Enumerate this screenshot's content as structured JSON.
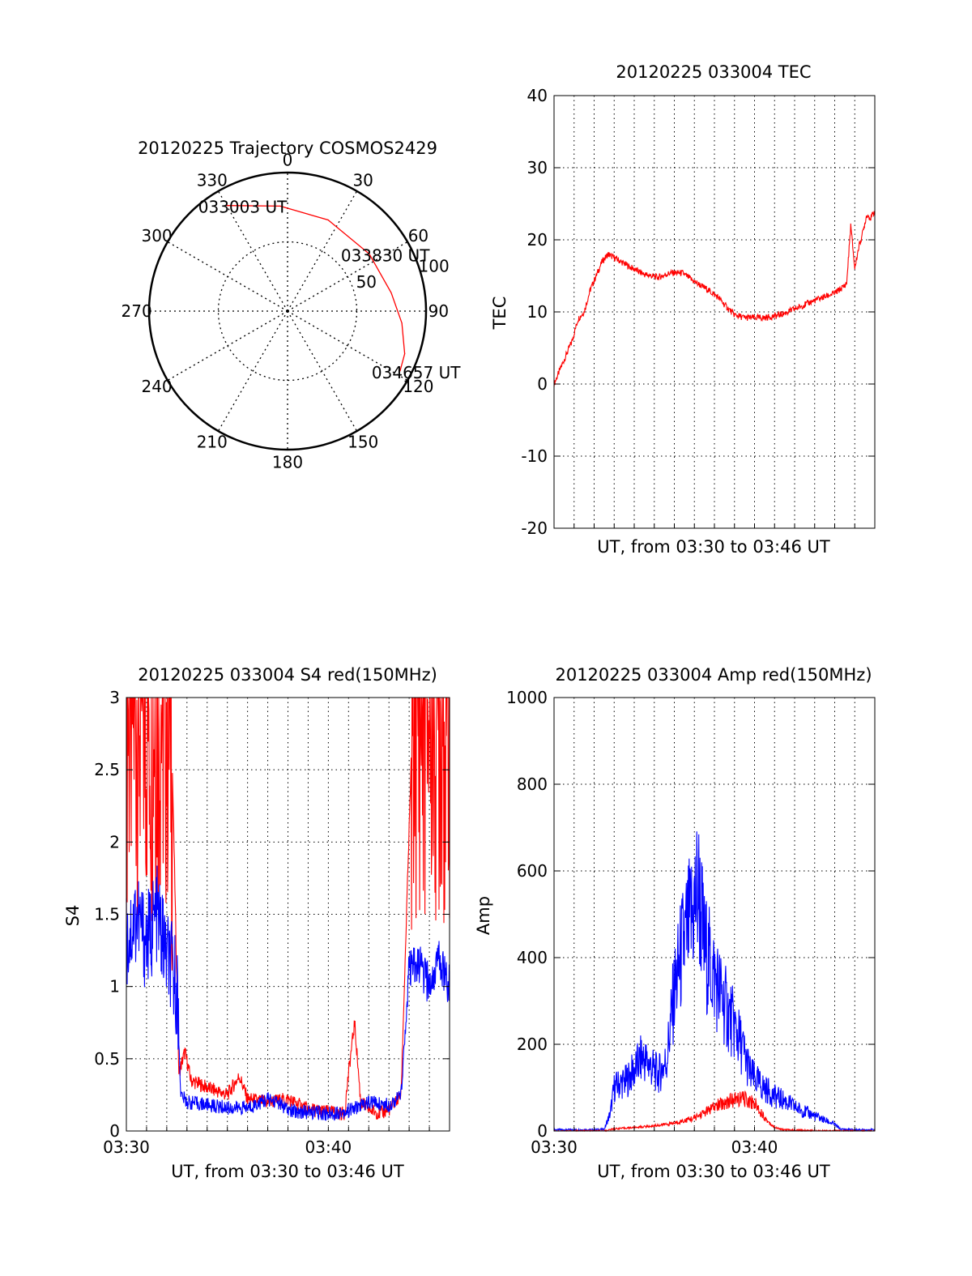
{
  "chart_data": [
    {
      "type": "polar-trajectory",
      "title": "20120225 Trajectory COSMOS2429",
      "azimuth_labels": [
        "0",
        "30",
        "60",
        "90",
        "120",
        "150",
        "180",
        "210",
        "240",
        "270",
        "300",
        "330"
      ],
      "radius_labels": [
        "50",
        "100"
      ],
      "grid": true,
      "series": [
        {
          "color": "#ff0000",
          "points": [
            {
              "az": 330,
              "r": 88
            },
            {
              "az": 356,
              "r": 76
            },
            {
              "az": 24,
              "r": 72
            },
            {
              "az": 55,
              "r": 72
            },
            {
              "az": 80,
              "r": 76
            },
            {
              "az": 96,
              "r": 83
            },
            {
              "az": 110,
              "r": 90
            },
            {
              "az": 118,
              "r": 92
            }
          ]
        }
      ],
      "annotations": [
        {
          "text": "033003 UT",
          "az": 330,
          "r": 88
        },
        {
          "text": "033830 UT",
          "az": 55,
          "r": 72
        },
        {
          "text": "034657 UT",
          "az": 118,
          "r": 92
        }
      ]
    },
    {
      "type": "line",
      "title": "20120225 033004 TEC",
      "xlabel": "UT, from 03:30 to 03:46 UT",
      "ylabel": "TEC",
      "xlim": [
        0,
        16
      ],
      "ylim": [
        -20,
        40
      ],
      "yticks": [
        "-20",
        "-10",
        "0",
        "10",
        "20",
        "30",
        "40"
      ],
      "grid": true,
      "series": [
        {
          "color": "#ff0000",
          "x": [
            0,
            0.3,
            0.6,
            0.9,
            1.2,
            1.5,
            1.8,
            2.1,
            2.4,
            2.7,
            3.2,
            3.8,
            4.5,
            5.2,
            5.8,
            6.4,
            7.0,
            7.6,
            8.2,
            8.5,
            9.0,
            9.5,
            10.0,
            10.5,
            11.0,
            11.5,
            12.0,
            12.5,
            13.0,
            13.5,
            14.0,
            14.2,
            14.4,
            14.6,
            14.8,
            15.0,
            15.2,
            15.4,
            15.6,
            15.8,
            16.0
          ],
          "y": [
            0,
            2,
            4,
            6,
            9,
            10,
            13,
            15,
            17,
            18,
            17.2,
            16.2,
            15.2,
            14.8,
            15.4,
            15.4,
            14.2,
            13.2,
            12.0,
            11.0,
            9.6,
            9.2,
            9.2,
            9.2,
            9.4,
            9.8,
            10.4,
            11.0,
            11.6,
            12.1,
            12.6,
            13.0,
            13.4,
            14.0,
            22.0,
            16.0,
            19.0,
            21.0,
            23.5,
            23.0,
            24.0
          ]
        }
      ]
    },
    {
      "type": "line",
      "title": "20120225 033004 S4 red(150MHz)",
      "xlabel": "UT, from 03:30 to 03:46 UT",
      "ylabel": "S4",
      "xlim": [
        0,
        16
      ],
      "ylim": [
        0,
        3
      ],
      "xticks": [
        {
          "x": 0,
          "label": "03:30"
        },
        {
          "x": 10,
          "label": "03:40"
        }
      ],
      "yticks": [
        "0",
        "0.5",
        "1",
        "1.5",
        "2",
        "2.5",
        "3"
      ],
      "grid": true,
      "series": [
        {
          "color": "#ff0000",
          "x": [
            0,
            2.2,
            2.6,
            2.9,
            3.2,
            4.0,
            5.0,
            5.6,
            6.0,
            7.0,
            8.0,
            9.0,
            10.0,
            10.8,
            11.0,
            11.3,
            11.6,
            12.0,
            12.6,
            13.0,
            13.3,
            13.6,
            14.2,
            15.0,
            16.0
          ],
          "y": [
            3.0,
            3.0,
            0.4,
            0.55,
            0.35,
            0.3,
            0.25,
            0.38,
            0.22,
            0.2,
            0.22,
            0.15,
            0.13,
            0.12,
            0.4,
            0.75,
            0.2,
            0.15,
            0.12,
            0.15,
            0.2,
            0.25,
            3.0,
            3.0,
            3.0
          ]
        },
        {
          "color": "#0000ff",
          "x": [
            0,
            0.5,
            1.0,
            1.5,
            2.0,
            2.5,
            2.7,
            3.0,
            4.0,
            5.0,
            6.0,
            7.0,
            7.5,
            8.0,
            9.0,
            10.0,
            11.0,
            12.0,
            13.0,
            13.6,
            14.0,
            14.5,
            15.0,
            15.5,
            16.0
          ],
          "y": [
            1.3,
            1.5,
            1.3,
            1.5,
            1.2,
            1.0,
            0.25,
            0.2,
            0.18,
            0.16,
            0.16,
            0.22,
            0.2,
            0.14,
            0.13,
            0.12,
            0.14,
            0.2,
            0.18,
            0.25,
            1.1,
            1.15,
            1.0,
            1.2,
            1.0
          ]
        }
      ]
    },
    {
      "type": "line",
      "title": "20120225 033004 Amp red(150MHz)",
      "xlabel": "UT, from 03:30 to 03:46 UT",
      "ylabel": "Amp",
      "xlim": [
        0,
        16
      ],
      "ylim": [
        0,
        1000
      ],
      "xticks": [
        {
          "x": 0,
          "label": "03:30"
        },
        {
          "x": 10,
          "label": "03:40"
        }
      ],
      "yticks": [
        "0",
        "200",
        "400",
        "600",
        "800",
        "1000"
      ],
      "grid": true,
      "series": [
        {
          "color": "#0000ff",
          "x": [
            0,
            2.0,
            2.5,
            2.8,
            3.0,
            3.3,
            3.6,
            4.0,
            4.4,
            4.8,
            5.2,
            5.6,
            6.0,
            6.4,
            6.8,
            7.2,
            7.5,
            7.8,
            8.2,
            8.6,
            9.0,
            9.4,
            9.8,
            10.2,
            10.6,
            11.0,
            11.5,
            12.0,
            12.5,
            13.0,
            13.5,
            14.0,
            14.3,
            15.0,
            16.0
          ],
          "y": [
            3,
            3,
            4,
            40,
            100,
            110,
            115,
            140,
            170,
            150,
            130,
            160,
            320,
            420,
            480,
            560,
            420,
            380,
            330,
            280,
            240,
            190,
            130,
            110,
            95,
            80,
            70,
            55,
            45,
            35,
            25,
            15,
            4,
            3,
            3
          ]
        },
        {
          "color": "#ff0000",
          "x": [
            0,
            2.5,
            3.0,
            4.0,
            5.0,
            6.0,
            7.0,
            7.6,
            8.2,
            8.8,
            9.4,
            10.0,
            10.6,
            11.0,
            11.4,
            12.0,
            13.0,
            14.0,
            15.0,
            16.0
          ],
          "y": [
            0,
            0,
            5,
            8,
            12,
            18,
            30,
            45,
            60,
            70,
            75,
            65,
            25,
            8,
            3,
            2,
            1,
            0,
            0,
            0
          ]
        }
      ]
    }
  ]
}
